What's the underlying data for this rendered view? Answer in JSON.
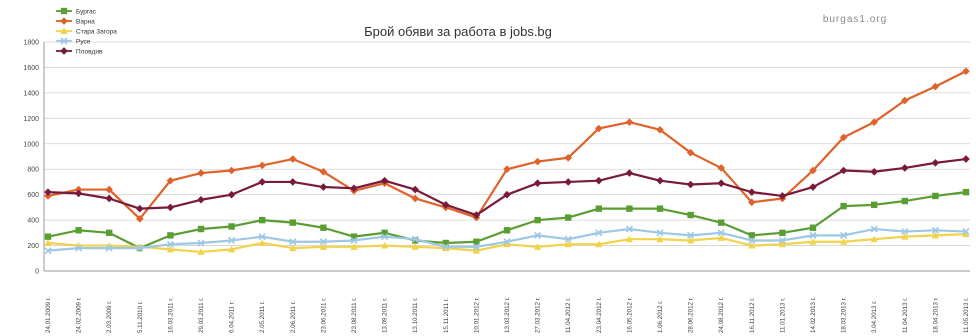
{
  "chart_data": {
    "type": "line",
    "title": "Брой обяви за работа в jobs.bg",
    "watermark": "burgas1.org",
    "xlabel": "",
    "ylabel": "",
    "ylim": [
      0,
      1800
    ],
    "yticks": [
      "0",
      "200",
      "400",
      "600",
      "800",
      "1000",
      "1200",
      "1400",
      "1600",
      "1800"
    ],
    "grid": true,
    "legend_position": "top-left",
    "categories": [
      "24.01.2009 г.",
      "24.02.2009 г.",
      "2.03.2009 г.",
      "5.11.2010 г.",
      "16.03.2011 г.",
      "29.03.2011 г.",
      "6.04.2011 г.",
      "2.05.2011 г.",
      "2.06.2011 г.",
      "23.06.2011 г.",
      "23.08.2011 г.",
      "13.09.2011 г.",
      "13.10.2011 г.",
      "15.11.2011 г.",
      "10.01.2012 г.",
      "13.03.2012 г.",
      "27.03.2012 г.",
      "11.04.2012 г.",
      "23.04.2012 г.",
      "16.05.2012 г.",
      "1.06.2012 г.",
      "28.06.2012 г.",
      "24.08.2012 г.",
      "16.11.2012 г.",
      "11.01.2013 г.",
      "14.02.2013 г.",
      "18.03.2013 г.",
      "3.04.2013 г.",
      "11.04.2013 г.",
      "18.04.2013 г.",
      "11.05.2013 г."
    ],
    "series": [
      {
        "name": "Бургас",
        "color": "#5a9e32",
        "marker": "square",
        "values": [
          270,
          320,
          300,
          180,
          280,
          330,
          350,
          400,
          380,
          340,
          270,
          300,
          240,
          220,
          230,
          320,
          400,
          420,
          490,
          490,
          490,
          440,
          380,
          280,
          300,
          340,
          510,
          520,
          550,
          590,
          620
        ]
      },
      {
        "name": "Варна",
        "color": "#e0612a",
        "marker": "diamond",
        "values": [
          590,
          640,
          640,
          410,
          710,
          770,
          790,
          830,
          880,
          780,
          630,
          690,
          570,
          500,
          420,
          800,
          860,
          890,
          1120,
          1170,
          1110,
          930,
          810,
          540,
          570,
          790,
          1050,
          1170,
          1340,
          1450,
          1570
        ]
      },
      {
        "name": "Стара Загора",
        "color": "#f2d24a",
        "marker": "triangle",
        "values": [
          220,
          200,
          200,
          190,
          170,
          150,
          170,
          220,
          180,
          190,
          190,
          200,
          190,
          180,
          160,
          210,
          190,
          210,
          210,
          250,
          250,
          240,
          260,
          200,
          210,
          230,
          230,
          250,
          270,
          280,
          290
        ]
      },
      {
        "name": "Русе",
        "color": "#9cc8e4",
        "marker": "x",
        "values": [
          160,
          180,
          180,
          180,
          210,
          220,
          240,
          270,
          230,
          230,
          240,
          270,
          250,
          190,
          190,
          230,
          280,
          250,
          300,
          330,
          300,
          280,
          300,
          240,
          240,
          280,
          280,
          330,
          310,
          320,
          310
        ]
      },
      {
        "name": "Пловдив",
        "color": "#7a1a3a",
        "marker": "diamond",
        "values": [
          620,
          610,
          570,
          490,
          500,
          560,
          600,
          700,
          700,
          660,
          650,
          710,
          640,
          520,
          440,
          600,
          690,
          700,
          710,
          770,
          710,
          680,
          690,
          620,
          590,
          660,
          790,
          780,
          810,
          850,
          880
        ]
      }
    ]
  }
}
